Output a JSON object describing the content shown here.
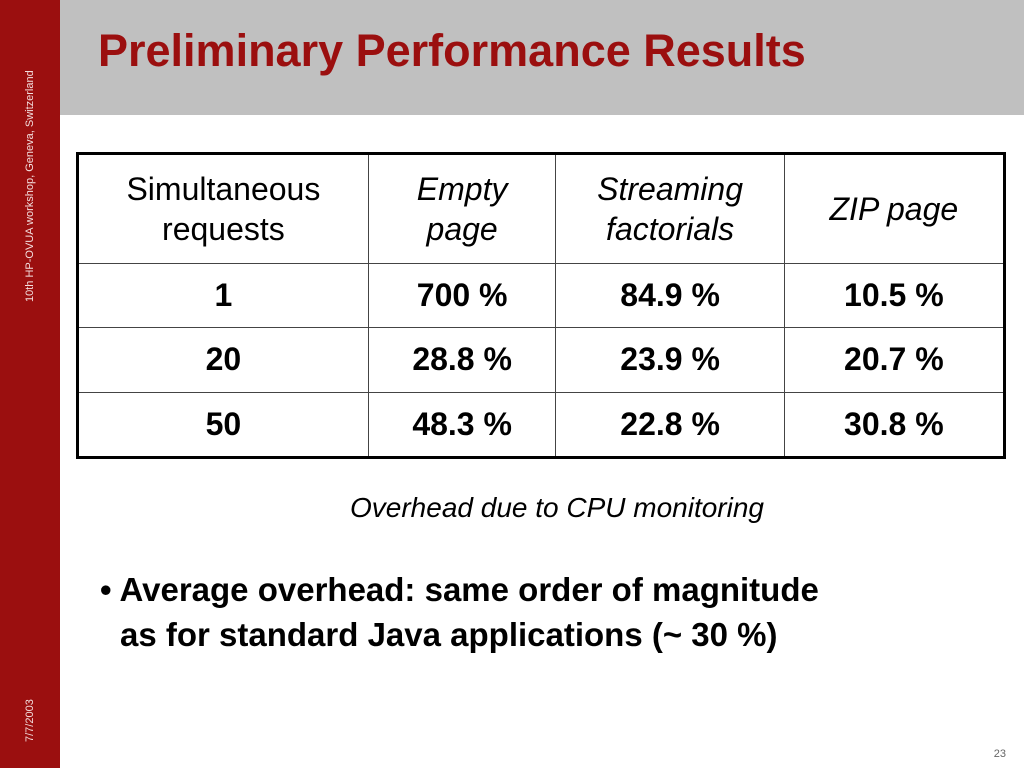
{
  "slide": {
    "title": "Preliminary Performance Results",
    "sidebar_text": "10th HP-OVUA workshop, Geneva, Switzerland",
    "date": "7/7/2003",
    "page_number": "23",
    "caption": "Overhead due to CPU monitoring",
    "bullet_marker": "•",
    "bullet_line1": "Average overhead: same order of magnitude",
    "bullet_line2": "as for standard Java applications  (~ 30 %)",
    "colors": {
      "accent": "#9b0f0f",
      "header_bg": "#c0c0c0"
    }
  },
  "table": {
    "headers": [
      [
        "Simultaneous",
        "requests"
      ],
      [
        "Empty",
        "page"
      ],
      [
        "Streaming",
        "factorials"
      ],
      [
        "ZIP page",
        ""
      ]
    ],
    "rows": [
      [
        "1",
        "700 %",
        "84.9 %",
        "10.5 %"
      ],
      [
        "20",
        "28.8 %",
        "23.9 %",
        "20.7 %"
      ],
      [
        "50",
        "48.3 %",
        "22.8 %",
        "30.8 %"
      ]
    ]
  }
}
